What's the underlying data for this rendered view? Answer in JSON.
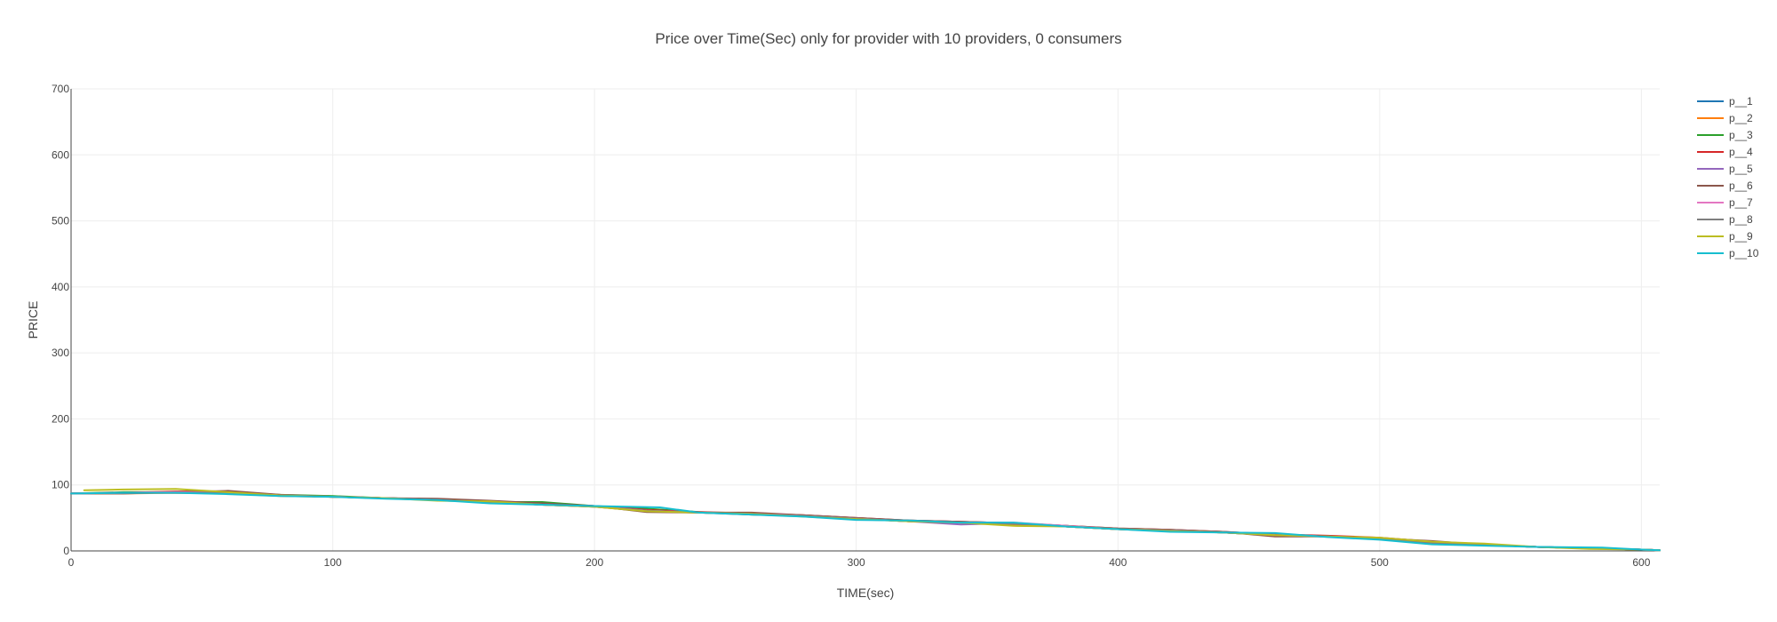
{
  "chart_data": {
    "type": "line",
    "title": "Price over Time(Sec) only for provider with 10 providers, 0 consumers",
    "xlabel": "TIME(sec)",
    "ylabel": "PRICE",
    "xlim": [
      0,
      607
    ],
    "ylim": [
      0,
      700
    ],
    "xticks": [
      0,
      100,
      200,
      300,
      400,
      500,
      600
    ],
    "yticks": [
      0,
      100,
      200,
      300,
      400,
      500,
      600,
      700
    ],
    "grid": true,
    "legend_position": "top-right",
    "series": [
      {
        "name": "p__1",
        "color": "#1f77b4",
        "x": [
          0,
          20,
          40,
          60,
          80,
          100,
          120,
          140,
          160,
          180,
          200,
          220,
          240,
          260,
          280,
          300,
          320,
          340,
          360,
          380,
          400,
          420,
          440,
          460,
          480,
          500,
          520,
          540,
          560,
          580,
          600,
          607
        ],
        "y": [
          87,
          88,
          89,
          88,
          84,
          82,
          80,
          78,
          74,
          70,
          68,
          62,
          58,
          56,
          53,
          49,
          46,
          44,
          42,
          38,
          33,
          31,
          29,
          25,
          22,
          18,
          12,
          9,
          6,
          4,
          2,
          1
        ]
      },
      {
        "name": "p__2",
        "color": "#ff7f0e",
        "x": [
          0,
          20,
          40,
          60,
          80,
          100,
          120,
          140,
          160,
          180,
          200,
          220,
          240,
          260,
          280,
          300,
          320,
          340,
          360,
          380,
          400,
          420,
          440,
          460,
          480,
          500,
          520,
          540,
          560,
          580,
          600,
          607
        ],
        "y": [
          87,
          87,
          88,
          87,
          83,
          82,
          80,
          77,
          74,
          70,
          67,
          60,
          58,
          56,
          54,
          49,
          45,
          43,
          40,
          37,
          33,
          31,
          28,
          24,
          22,
          19,
          13,
          9,
          6,
          4,
          2,
          1
        ]
      },
      {
        "name": "p__3",
        "color": "#2ca02c",
        "x": [
          0,
          20,
          40,
          60,
          80,
          100,
          120,
          140,
          160,
          180,
          200,
          220,
          240,
          260,
          280,
          300,
          320,
          340,
          360,
          380,
          400,
          420,
          440,
          460,
          480,
          500,
          520,
          540,
          560,
          580,
          600,
          607
        ],
        "y": [
          87,
          89,
          89,
          88,
          85,
          83,
          80,
          78,
          74,
          74,
          68,
          64,
          59,
          55,
          53,
          49,
          45,
          43,
          42,
          37,
          33,
          31,
          28,
          24,
          22,
          18,
          13,
          9,
          6,
          4,
          2,
          1
        ]
      },
      {
        "name": "p__4",
        "color": "#d62728",
        "x": [
          0,
          20,
          40,
          60,
          80,
          100,
          120,
          140,
          160,
          180,
          200,
          220,
          240,
          260,
          280,
          300,
          320,
          340,
          360,
          380,
          400,
          420,
          440,
          460,
          480,
          500,
          520,
          540,
          560,
          580,
          600,
          607
        ],
        "y": [
          87,
          88,
          90,
          90,
          84,
          82,
          80,
          78,
          75,
          71,
          68,
          62,
          59,
          57,
          54,
          50,
          46,
          44,
          42,
          38,
          34,
          32,
          29,
          25,
          23,
          20,
          14,
          9,
          6,
          4,
          2,
          1
        ]
      },
      {
        "name": "p__5",
        "color": "#9467bd",
        "x": [
          0,
          20,
          40,
          60,
          80,
          100,
          120,
          140,
          160,
          180,
          200,
          220,
          240,
          260,
          280,
          300,
          320,
          340,
          360,
          380,
          400,
          420,
          440,
          460,
          480,
          500,
          520,
          540,
          560,
          580,
          600,
          607
        ],
        "y": [
          87,
          88,
          89,
          88,
          84,
          82,
          80,
          77,
          74,
          71,
          68,
          61,
          58,
          56,
          53,
          49,
          45,
          40,
          42,
          37,
          33,
          31,
          28,
          24,
          22,
          18,
          12,
          9,
          6,
          4,
          2,
          1
        ]
      },
      {
        "name": "p__6",
        "color": "#8c564b",
        "x": [
          0,
          20,
          40,
          60,
          80,
          100,
          120,
          140,
          160,
          180,
          200,
          220,
          240,
          260,
          280,
          300,
          320,
          340,
          360,
          380,
          400,
          420,
          440,
          460,
          480,
          500,
          520,
          540,
          560,
          580,
          600,
          607
        ],
        "y": [
          87,
          87,
          89,
          91,
          85,
          82,
          80,
          79,
          76,
          72,
          68,
          59,
          58,
          58,
          54,
          50,
          46,
          44,
          42,
          38,
          34,
          32,
          29,
          22,
          22,
          19,
          15,
          9,
          6,
          4,
          2,
          1
        ]
      },
      {
        "name": "p__7",
        "color": "#e377c2",
        "x": [
          0,
          20,
          40,
          60,
          80,
          100,
          120,
          140,
          160,
          180,
          200,
          220,
          240,
          260,
          280,
          300,
          320,
          340,
          360,
          380,
          400,
          420,
          440,
          460,
          480,
          500,
          520,
          540,
          560,
          580,
          600,
          607
        ],
        "y": [
          87,
          88,
          89,
          88,
          84,
          82,
          80,
          77,
          74,
          70,
          67,
          61,
          58,
          56,
          53,
          49,
          45,
          43,
          43,
          38,
          33,
          31,
          28,
          24,
          22,
          18,
          12,
          9,
          6,
          4,
          2,
          1
        ]
      },
      {
        "name": "p__8",
        "color": "#7f7f7f",
        "x": [
          0,
          20,
          40,
          60,
          80,
          100,
          120,
          140,
          160,
          180,
          200,
          220,
          240,
          260,
          280,
          300,
          320,
          340,
          360,
          380,
          400,
          420,
          440,
          460,
          480,
          500,
          520,
          540,
          560,
          580,
          600,
          607
        ],
        "y": [
          87,
          88,
          88,
          88,
          84,
          82,
          80,
          77,
          74,
          70,
          67,
          61,
          58,
          55,
          53,
          49,
          45,
          43,
          41,
          37,
          33,
          31,
          28,
          24,
          22,
          18,
          12,
          9,
          6,
          4,
          2,
          1
        ]
      },
      {
        "name": "p__9",
        "color": "#bcbd22",
        "x": [
          5,
          20,
          40,
          60,
          80,
          100,
          120,
          140,
          160,
          180,
          200,
          220,
          240,
          260,
          280,
          300,
          320,
          340,
          360,
          380,
          400,
          420,
          440,
          460,
          480,
          500,
          520,
          540,
          560,
          580,
          600,
          607
        ],
        "y": [
          92,
          93,
          94,
          89,
          84,
          82,
          80,
          76,
          75,
          70,
          67,
          60,
          58,
          56,
          52,
          48,
          45,
          43,
          38,
          37,
          33,
          30,
          28,
          24,
          22,
          20,
          14,
          11,
          6,
          3,
          2,
          1
        ]
      },
      {
        "name": "p__10",
        "color": "#17becf",
        "x": [
          0,
          20,
          40,
          60,
          80,
          100,
          120,
          140,
          160,
          180,
          200,
          225,
          240,
          260,
          280,
          300,
          320,
          340,
          360,
          380,
          400,
          420,
          440,
          460,
          480,
          500,
          520,
          540,
          560,
          585,
          600,
          607
        ],
        "y": [
          87,
          88,
          88,
          86,
          83,
          82,
          79,
          77,
          72,
          70,
          68,
          66,
          58,
          55,
          52,
          47,
          46,
          43,
          43,
          37,
          33,
          29,
          28,
          27,
          21,
          17,
          10,
          8,
          6,
          5,
          2,
          1
        ]
      }
    ]
  }
}
